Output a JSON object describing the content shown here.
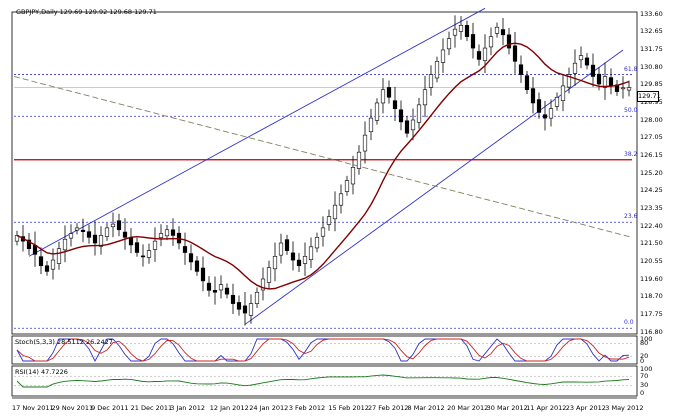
{
  "header": {
    "title": "GBPJPY,Daily",
    "ohlc": "129.69 129.92 129.68 129.71"
  },
  "price_axis": {
    "ticks": [
      "133.60",
      "132.65",
      "131.75",
      "130.80",
      "129.85",
      "128.95",
      "128.00",
      "127.05",
      "126.15",
      "125.20",
      "124.25",
      "123.35",
      "122.40",
      "121.50",
      "120.55",
      "119.60",
      "118.70",
      "117.75",
      "116.80"
    ],
    "current_price": "129.71"
  },
  "date_axis": {
    "ticks": [
      "17 Nov 2011",
      "29 Nov 2011",
      "9 Dec 2011",
      "21 Dec 2011",
      "3 Jan 2012",
      "12 Jan 2012",
      "24 Jan 2012",
      "3 Feb 2012",
      "15 Feb 2012",
      "27 Feb 2012",
      "8 Mar 2012",
      "20 Mar 2012",
      "30 Mar 2012",
      "11 Apr 2012",
      "23 Apr 2012",
      "3 May 2012"
    ]
  },
  "fib_labels": [
    "61.8",
    "50.0",
    "38.2",
    "23.6",
    "0.0"
  ],
  "stoch": {
    "label": "Stoch(5,3,3) 28.5112 26.2427",
    "ticks": [
      "100",
      "80",
      "20",
      "0"
    ]
  },
  "rsi": {
    "label": "RSI(14) 47.7226",
    "ticks": [
      "100",
      "70",
      "30",
      "0"
    ]
  },
  "colors": {
    "bull": "#ffffff",
    "bear": "#000000",
    "ma": "#800000",
    "channel": "#3333cc",
    "fib": "#3333cc",
    "support": "#cc0000",
    "trend_dashed": "#808060",
    "stoch_main": "#3333cc",
    "stoch_signal": "#cc2222",
    "rsi": "#1a7a1a"
  },
  "chart_data": {
    "type": "candlestick",
    "symbol": "GBPJPY",
    "timeframe": "Daily",
    "ylim": [
      116.8,
      133.6
    ],
    "levels": {
      "fib_61_8": 130.4,
      "fib_50_0": 128.2,
      "fib_38_2": 125.9,
      "fib_23_6": 122.6,
      "support_line": 125.9
    },
    "closes": [
      121.9,
      121.6,
      121.2,
      120.9,
      120.3,
      120.0,
      120.6,
      121.2,
      121.7,
      122.0,
      122.3,
      122.1,
      121.8,
      121.5,
      121.9,
      122.3,
      122.5,
      122.2,
      121.8,
      121.4,
      121.0,
      120.8,
      121.1,
      121.6,
      122.0,
      122.2,
      121.9,
      121.5,
      121.0,
      120.5,
      120.0,
      119.5,
      119.0,
      118.9,
      119.3,
      118.8,
      118.3,
      118.0,
      117.8,
      118.3,
      118.9,
      119.6,
      120.2,
      120.8,
      121.5,
      121.1,
      120.6,
      120.3,
      120.8,
      121.3,
      121.8,
      122.3,
      122.9,
      123.5,
      124.1,
      124.8,
      125.5,
      126.3,
      127.2,
      128.1,
      128.9,
      129.6,
      129.2,
      128.6,
      127.9,
      127.3,
      128.0,
      128.8,
      129.6,
      130.4,
      131.1,
      131.7,
      132.3,
      132.8,
      133.0,
      132.4,
      131.8,
      131.2,
      131.8,
      132.4,
      132.9,
      132.5,
      131.8,
      131.1,
      130.4,
      129.6,
      128.9,
      128.4,
      128.1,
      128.6,
      129.2,
      129.8,
      130.4,
      131.0,
      131.4,
      130.9,
      130.3,
      129.9,
      130.3,
      129.8,
      129.5,
      129.7,
      129.71
    ]
  }
}
